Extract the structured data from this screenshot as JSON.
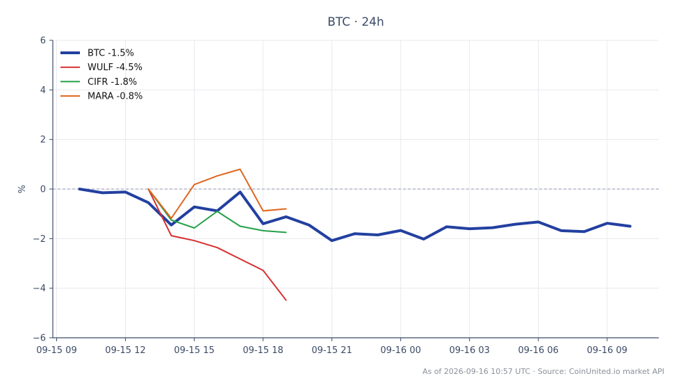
{
  "chart_data": {
    "type": "line",
    "title": "BTC · 24h",
    "xlabel": "",
    "ylabel": "%",
    "ylim": [
      -6,
      6
    ],
    "yticks": [
      6,
      4,
      2,
      0,
      -2,
      -4,
      -6
    ],
    "ytick_labels": [
      "6",
      "4",
      "2",
      "0",
      "−2",
      "−4",
      "−6"
    ],
    "xlim": [
      "2026-09-15 08:50",
      "2026-09-16 11:15"
    ],
    "xticks": [
      "2026-09-15 09:00",
      "2026-09-15 12:00",
      "2026-09-15 15:00",
      "2026-09-15 18:00",
      "2026-09-15 21:00",
      "2026-09-16 00:00",
      "2026-09-16 03:00",
      "2026-09-16 06:00",
      "2026-09-16 09:00"
    ],
    "xtick_labels": [
      "09-15 09",
      "09-15 12",
      "09-15 15",
      "09-15 18",
      "09-15 21",
      "09-16 00",
      "09-16 03",
      "09-16 06",
      "09-16 09"
    ],
    "grid": true,
    "zero_line": true,
    "legend_position": "top-left",
    "series": [
      {
        "name": "BTC -1.5%",
        "color": "#2340a0",
        "width": 4,
        "x": [
          "2026-09-15 10:00",
          "2026-09-15 11:00",
          "2026-09-15 12:00",
          "2026-09-15 13:00",
          "2026-09-15 14:00",
          "2026-09-15 15:00",
          "2026-09-15 16:00",
          "2026-09-15 17:00",
          "2026-09-15 18:00",
          "2026-09-15 19:00",
          "2026-09-15 20:00",
          "2026-09-15 21:00",
          "2026-09-15 22:00",
          "2026-09-15 23:00",
          "2026-09-16 00:00",
          "2026-09-16 01:00",
          "2026-09-16 02:00",
          "2026-09-16 03:00",
          "2026-09-16 04:00",
          "2026-09-16 05:00",
          "2026-09-16 06:00",
          "2026-09-16 07:00",
          "2026-09-16 08:00",
          "2026-09-16 09:00",
          "2026-09-16 10:00"
        ],
        "values": [
          0.0,
          -0.15,
          -0.12,
          -0.55,
          -1.45,
          -0.72,
          -0.88,
          -0.12,
          -1.4,
          -1.12,
          -1.45,
          -2.08,
          -1.8,
          -1.85,
          -1.67,
          -2.02,
          -1.52,
          -1.6,
          -1.56,
          -1.42,
          -1.33,
          -1.68,
          -1.72,
          -1.38,
          -1.5
        ]
      },
      {
        "name": "WULF -4.5%",
        "color": "#d62f2f",
        "width": 2,
        "x": [
          "2026-09-15 13:00",
          "2026-09-15 14:00",
          "2026-09-15 15:00",
          "2026-09-15 16:00",
          "2026-09-15 17:00",
          "2026-09-15 18:00",
          "2026-09-15 19:00"
        ],
        "values": [
          0.0,
          -1.88,
          -2.08,
          -2.36,
          -2.82,
          -3.28,
          -4.48
        ]
      },
      {
        "name": "CIFR -1.8%",
        "color": "#23a047",
        "width": 2,
        "x": [
          "2026-09-15 13:00",
          "2026-09-15 14:00",
          "2026-09-15 15:00",
          "2026-09-15 16:00",
          "2026-09-15 17:00",
          "2026-09-15 18:00",
          "2026-09-15 19:00"
        ],
        "values": [
          0.0,
          -1.25,
          -1.57,
          -0.9,
          -1.5,
          -1.68,
          -1.75
        ]
      },
      {
        "name": "MARA -0.8%",
        "color": "#e0651c",
        "width": 2,
        "x": [
          "2026-09-15 13:00",
          "2026-09-15 14:00",
          "2026-09-15 15:00",
          "2026-09-15 16:00",
          "2026-09-15 17:00",
          "2026-09-15 18:00",
          "2026-09-15 19:00"
        ],
        "values": [
          0.0,
          -1.18,
          0.18,
          0.53,
          0.8,
          -0.88,
          -0.8
        ]
      }
    ]
  },
  "footer": "As of 2026-09-16 10:57 UTC · Source: CoinUnited.io market API",
  "colors": {
    "axis": "#3b4a66",
    "grid": "#e8eaee",
    "zero_line": "#8d96b0"
  }
}
